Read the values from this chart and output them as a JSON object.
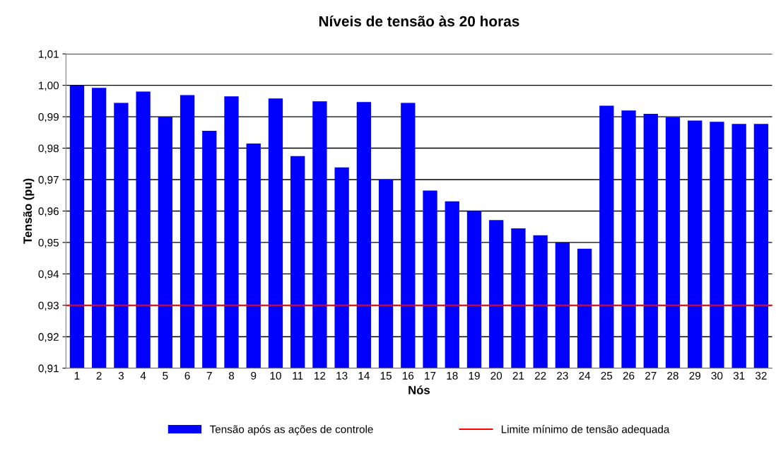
{
  "chart_data": {
    "type": "bar",
    "title": "Níveis de tensão às 20 horas",
    "xlabel": "Nós",
    "ylabel": "Tensão (pu)",
    "categories": [
      "1",
      "2",
      "3",
      "4",
      "5",
      "6",
      "7",
      "8",
      "9",
      "10",
      "11",
      "12",
      "13",
      "14",
      "15",
      "16",
      "17",
      "18",
      "19",
      "20",
      "21",
      "22",
      "23",
      "24",
      "25",
      "26",
      "27",
      "28",
      "29",
      "30",
      "31",
      "32"
    ],
    "series": [
      {
        "name": "Tensão após as ações de controle",
        "color": "#0000ff",
        "values": [
          1.0,
          0.9992,
          0.9944,
          0.998,
          0.99,
          0.9969,
          0.9855,
          0.9965,
          0.9815,
          0.9958,
          0.9775,
          0.9949,
          0.9739,
          0.9947,
          0.97,
          0.9944,
          0.9665,
          0.9631,
          0.96,
          0.9571,
          0.9545,
          0.9523,
          0.95,
          0.948,
          0.9935,
          0.992,
          0.9909,
          0.9898,
          0.9888,
          0.9884,
          0.9877,
          0.9877
        ]
      }
    ],
    "ref_lines": [
      {
        "axis": "y",
        "value": 0.93,
        "label": "Limite mínimo de tensão adequada",
        "color": "#ff0000",
        "line_style": "solid"
      }
    ],
    "ylim": [
      0.91,
      1.01
    ],
    "yticks": [
      {
        "value": 0.91,
        "label": "0,91"
      },
      {
        "value": 0.92,
        "label": "0,92"
      },
      {
        "value": 0.93,
        "label": "0,93"
      },
      {
        "value": 0.94,
        "label": "0,94"
      },
      {
        "value": 0.95,
        "label": "0,95"
      },
      {
        "value": 0.96,
        "label": "0,96"
      },
      {
        "value": 0.97,
        "label": "0,97"
      },
      {
        "value": 0.98,
        "label": "0,98"
      },
      {
        "value": 0.99,
        "label": "0,99"
      },
      {
        "value": 1.0,
        "label": "1,00"
      },
      {
        "value": 1.01,
        "label": "1,01"
      }
    ],
    "grid": "y",
    "legend": "bottom"
  }
}
